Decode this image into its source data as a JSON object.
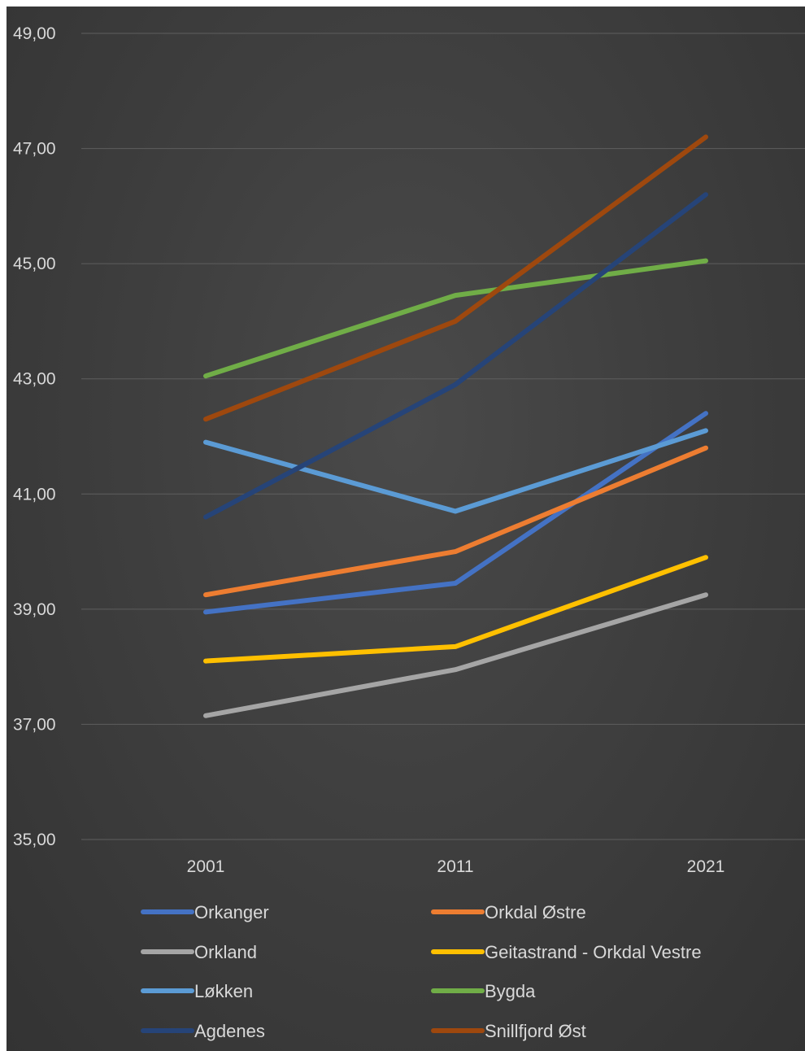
{
  "chart_data": {
    "type": "line",
    "title": "",
    "xlabel": "",
    "ylabel": "",
    "categories": [
      "2001",
      "2011",
      "2021"
    ],
    "ylim": [
      35,
      49
    ],
    "yticks": [
      35,
      37,
      39,
      41,
      43,
      45,
      47,
      49
    ],
    "ytick_labels": [
      "35,00",
      "37,00",
      "39,00",
      "41,00",
      "43,00",
      "45,00",
      "47,00",
      "49,00"
    ],
    "grid": true,
    "legend_position": "bottom",
    "series": [
      {
        "name": "Orkanger",
        "color": "#4472c4",
        "values": [
          38.95,
          39.45,
          42.4
        ]
      },
      {
        "name": "Orkdal Østre",
        "color": "#ed7d31",
        "values": [
          39.25,
          40.0,
          41.8
        ]
      },
      {
        "name": "Orkland",
        "color": "#a5a5a5",
        "values": [
          37.15,
          37.95,
          39.25
        ]
      },
      {
        "name": "Geitastrand - Orkdal Vestre",
        "color": "#ffc000",
        "values": [
          38.1,
          38.35,
          39.9
        ]
      },
      {
        "name": "Løkken",
        "color": "#5b9bd5",
        "values": [
          41.9,
          40.7,
          42.1
        ]
      },
      {
        "name": "Bygda",
        "color": "#70ad47",
        "values": [
          43.05,
          44.45,
          45.05
        ]
      },
      {
        "name": "Agdenes",
        "color": "#264478",
        "values": [
          40.6,
          42.9,
          46.2
        ]
      },
      {
        "name": "Snillfjord Øst",
        "color": "#9e480e",
        "values": [
          42.3,
          44.0,
          47.2
        ]
      }
    ]
  }
}
